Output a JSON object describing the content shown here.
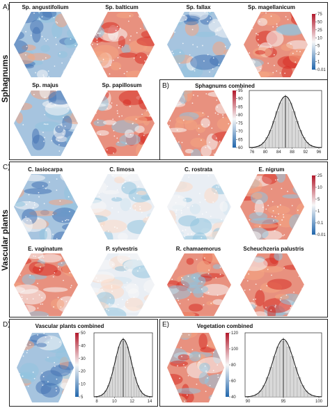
{
  "panels": {
    "A": {
      "label": "A)",
      "side": "Sphagnums",
      "maps": [
        {
          "title": "Sp. angustifolium",
          "tone": "cool"
        },
        {
          "title": "Sp. balticum",
          "tone": "warm"
        },
        {
          "title": "Sp. fallax",
          "tone": "cool"
        },
        {
          "title": "Sp. magellanicum",
          "tone": "warm"
        },
        {
          "title": "Sp. majus",
          "tone": "cool"
        },
        {
          "title": "Sp. papillosum",
          "tone": "warm"
        }
      ],
      "legend_ticks": [
        "75",
        "50",
        "25",
        "10",
        "5",
        "2",
        "1",
        "0.01"
      ]
    },
    "B": {
      "label": "B)",
      "title": "Sphagnums combined",
      "legend_ticks": [
        "95",
        "90",
        "85",
        "80",
        "75",
        "70",
        "65",
        "60"
      ],
      "hist_xticks": [
        "76",
        "80",
        "84",
        "88",
        "92",
        "96"
      ]
    },
    "C": {
      "label": "C)",
      "side": "Vascular plants",
      "maps": [
        {
          "title": "C. lasiocarpa",
          "tone": "cool"
        },
        {
          "title": "C. limosa",
          "tone": "pale"
        },
        {
          "title": "C. rostrata",
          "tone": "pale"
        },
        {
          "title": "E. nigrum",
          "tone": "warm"
        },
        {
          "title": "E. vaginatum",
          "tone": "warm"
        },
        {
          "title": "P. sylvestris",
          "tone": "pale"
        },
        {
          "title": "R. chamaemorus",
          "tone": "warm"
        },
        {
          "title": "Scheuchzeria palustris",
          "tone": "warm"
        }
      ],
      "legend_ticks": [
        "25",
        "10",
        "5",
        "1",
        "0.1",
        "0.01"
      ]
    },
    "D": {
      "label": "D)",
      "title": "Vascular plants combined",
      "legend_ticks": [
        "50",
        "40",
        "30",
        "20",
        "10",
        "5"
      ],
      "hist_xticks": [
        "8",
        "10",
        "12",
        "14"
      ]
    },
    "E": {
      "label": "E)",
      "title": "Vegetation combined",
      "legend_ticks": [
        "120",
        "100",
        "80",
        "60",
        "40"
      ],
      "hist_xticks": [
        "90",
        "95",
        "100"
      ]
    }
  },
  "colors": {
    "warm": "#d73027",
    "cool": "#4575b4",
    "mid": "#f7f7f7"
  }
}
